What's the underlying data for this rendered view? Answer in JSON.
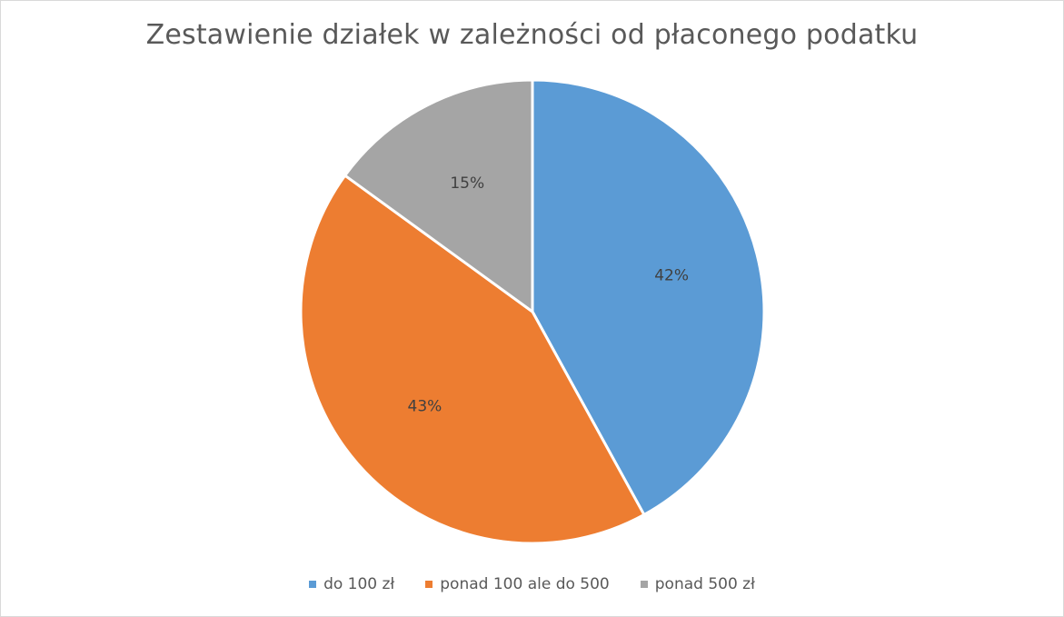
{
  "chart_data": {
    "type": "pie",
    "title": "Zestawienie działek w zależności od płaconego podatku",
    "categories": [
      "do 100 zł",
      "ponad 100 ale do 500",
      "ponad 500 zł"
    ],
    "values": [
      42,
      43,
      15
    ],
    "data_labels": [
      "42%",
      "43%",
      "15%"
    ],
    "colors": [
      "#5b9bd5",
      "#ed7d31",
      "#a5a5a5"
    ],
    "legend_position": "bottom",
    "start_angle_deg": 0,
    "direction": "clockwise"
  }
}
